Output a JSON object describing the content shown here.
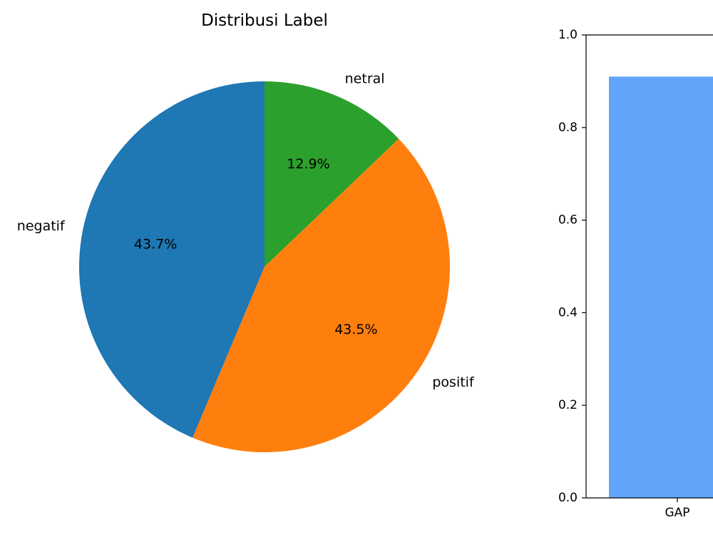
{
  "chart_data": [
    {
      "type": "pie",
      "title": "Distribusi Label",
      "start_angle_deg": 90,
      "direction": "clockwise",
      "slices": [
        {
          "label": "netral",
          "value": 12.9,
          "pct_label": "12.9%",
          "color": "#2ca02c"
        },
        {
          "label": "positif",
          "value": 43.5,
          "pct_label": "43.5%",
          "color": "#ff7f0e"
        },
        {
          "label": "negatif",
          "value": 43.7,
          "pct_label": "43.7%",
          "color": "#1f77b4"
        }
      ]
    },
    {
      "type": "bar",
      "title": "",
      "xlabel": "",
      "ylabel": "",
      "categories": [
        "GAP"
      ],
      "values": [
        0.91
      ],
      "colors": [
        "#60a5fa"
      ],
      "ylim": [
        0,
        1.0
      ],
      "yticks": [
        "0.0",
        "0.2",
        "0.4",
        "0.6",
        "0.8",
        "1.0"
      ],
      "grid": false
    }
  ]
}
